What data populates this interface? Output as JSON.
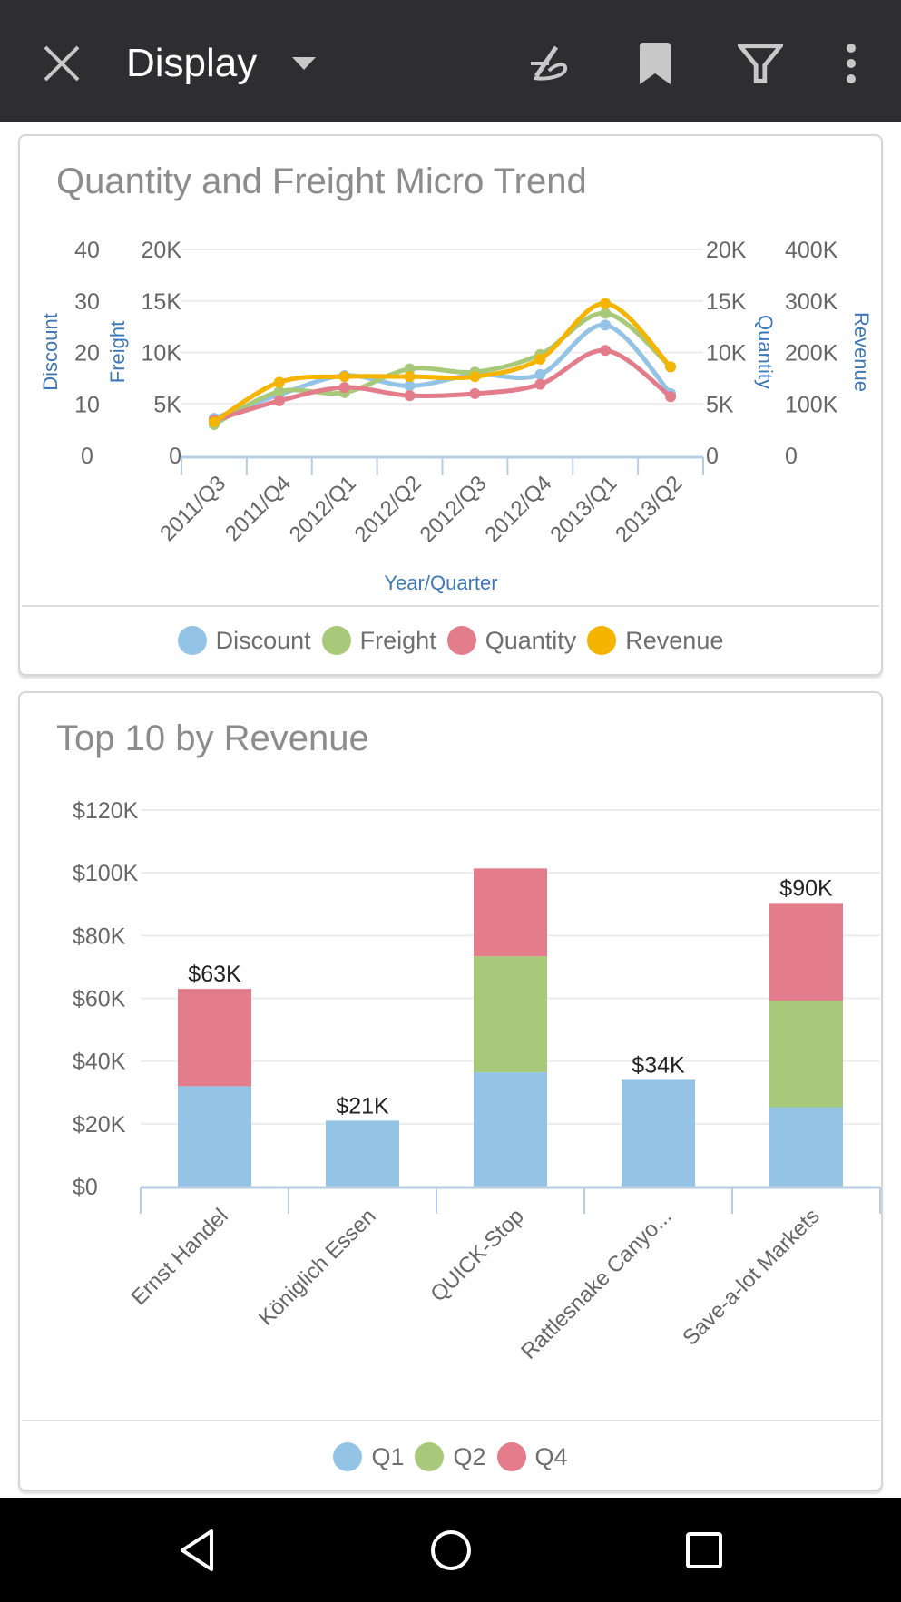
{
  "topbar": {
    "title": "Display",
    "icons": [
      "close-icon",
      "dropdown-arrow-icon",
      "signature-icon",
      "bookmark-icon",
      "filter-icon",
      "more-vertical-icon"
    ]
  },
  "colors": {
    "discount": "#93c4e6",
    "freight": "#a8c97a",
    "quantity": "#e37d8c",
    "revenue": "#f4b400",
    "axis_title": "#3f78b5"
  },
  "chart_data": [
    {
      "type": "line",
      "title": "Quantity and Freight Micro Trend",
      "xlabel": "Year/Quarter",
      "categories": [
        "2011/Q3",
        "2011/Q4",
        "2012/Q1",
        "2012/Q2",
        "2012/Q3",
        "2012/Q4",
        "2013/Q1",
        "2013/Q2"
      ],
      "axes": [
        {
          "id": "discount",
          "label": "Discount",
          "side": "left",
          "ylim": [
            0,
            40
          ],
          "ticks": [
            "0",
            "10",
            "20",
            "30",
            "40"
          ]
        },
        {
          "id": "freight",
          "label": "Freight",
          "side": "left",
          "ylim": [
            0,
            20000
          ],
          "ticks": [
            "0",
            "5K",
            "10K",
            "15K",
            "20K"
          ]
        },
        {
          "id": "quantity",
          "label": "Quantity",
          "side": "right",
          "ylim": [
            0,
            20000
          ],
          "ticks": [
            "0",
            "5K",
            "10K",
            "15K",
            "20K"
          ]
        },
        {
          "id": "revenue",
          "label": "Revenue",
          "side": "right",
          "ylim": [
            0,
            400000
          ],
          "ticks": [
            "0",
            "100K",
            "200K",
            "300K",
            "400K"
          ]
        }
      ],
      "series": [
        {
          "name": "Discount",
          "axis": "discount",
          "color": "#93c4e6",
          "values": [
            7.2,
            11.8,
            15.5,
            13.5,
            15.7,
            15.7,
            25.3,
            12
          ]
        },
        {
          "name": "Freight",
          "axis": "freight",
          "color": "#a8c97a",
          "values": [
            3000,
            6200,
            6100,
            8400,
            8100,
            9800,
            13800,
            8600
          ]
        },
        {
          "name": "Quantity",
          "axis": "quantity",
          "color": "#e37d8c",
          "values": [
            3400,
            5300,
            6600,
            5800,
            6000,
            6900,
            10200,
            5700
          ]
        },
        {
          "name": "Revenue",
          "axis": "revenue",
          "color": "#f4b400",
          "values": [
            65000,
            142000,
            153000,
            153000,
            153000,
            187000,
            295000,
            172000
          ]
        }
      ],
      "grid": true,
      "legend": "bottom"
    },
    {
      "type": "bar",
      "stacked": true,
      "title": "Top 10 by Revenue",
      "categories": [
        "Ernst Handel",
        "Königlich Essen",
        "QUICK-Stop",
        "Rattlesnake Canyo...",
        "Save-a-lot Markets"
      ],
      "ylim": [
        0,
        120000
      ],
      "yticks": [
        "$0",
        "$20K",
        "$40K",
        "$60K",
        "$80K",
        "$100K",
        "$120K"
      ],
      "series": [
        {
          "name": "Q1",
          "color": "#93c4e6",
          "values": [
            32000,
            21000,
            36400,
            34000,
            25300
          ]
        },
        {
          "name": "Q2",
          "color": "#a8c97a",
          "values": [
            0,
            0,
            37000,
            0,
            33900
          ]
        },
        {
          "name": "Q4",
          "color": "#e37d8c",
          "values": [
            31000,
            0,
            28000,
            0,
            31200
          ]
        }
      ],
      "data_labels": [
        "$63K",
        "$21K",
        "",
        "$34K",
        "$90K"
      ],
      "grid": true,
      "legend": "bottom"
    }
  ],
  "navbar": {
    "icons": [
      "back-icon",
      "home-icon",
      "recents-icon"
    ]
  }
}
